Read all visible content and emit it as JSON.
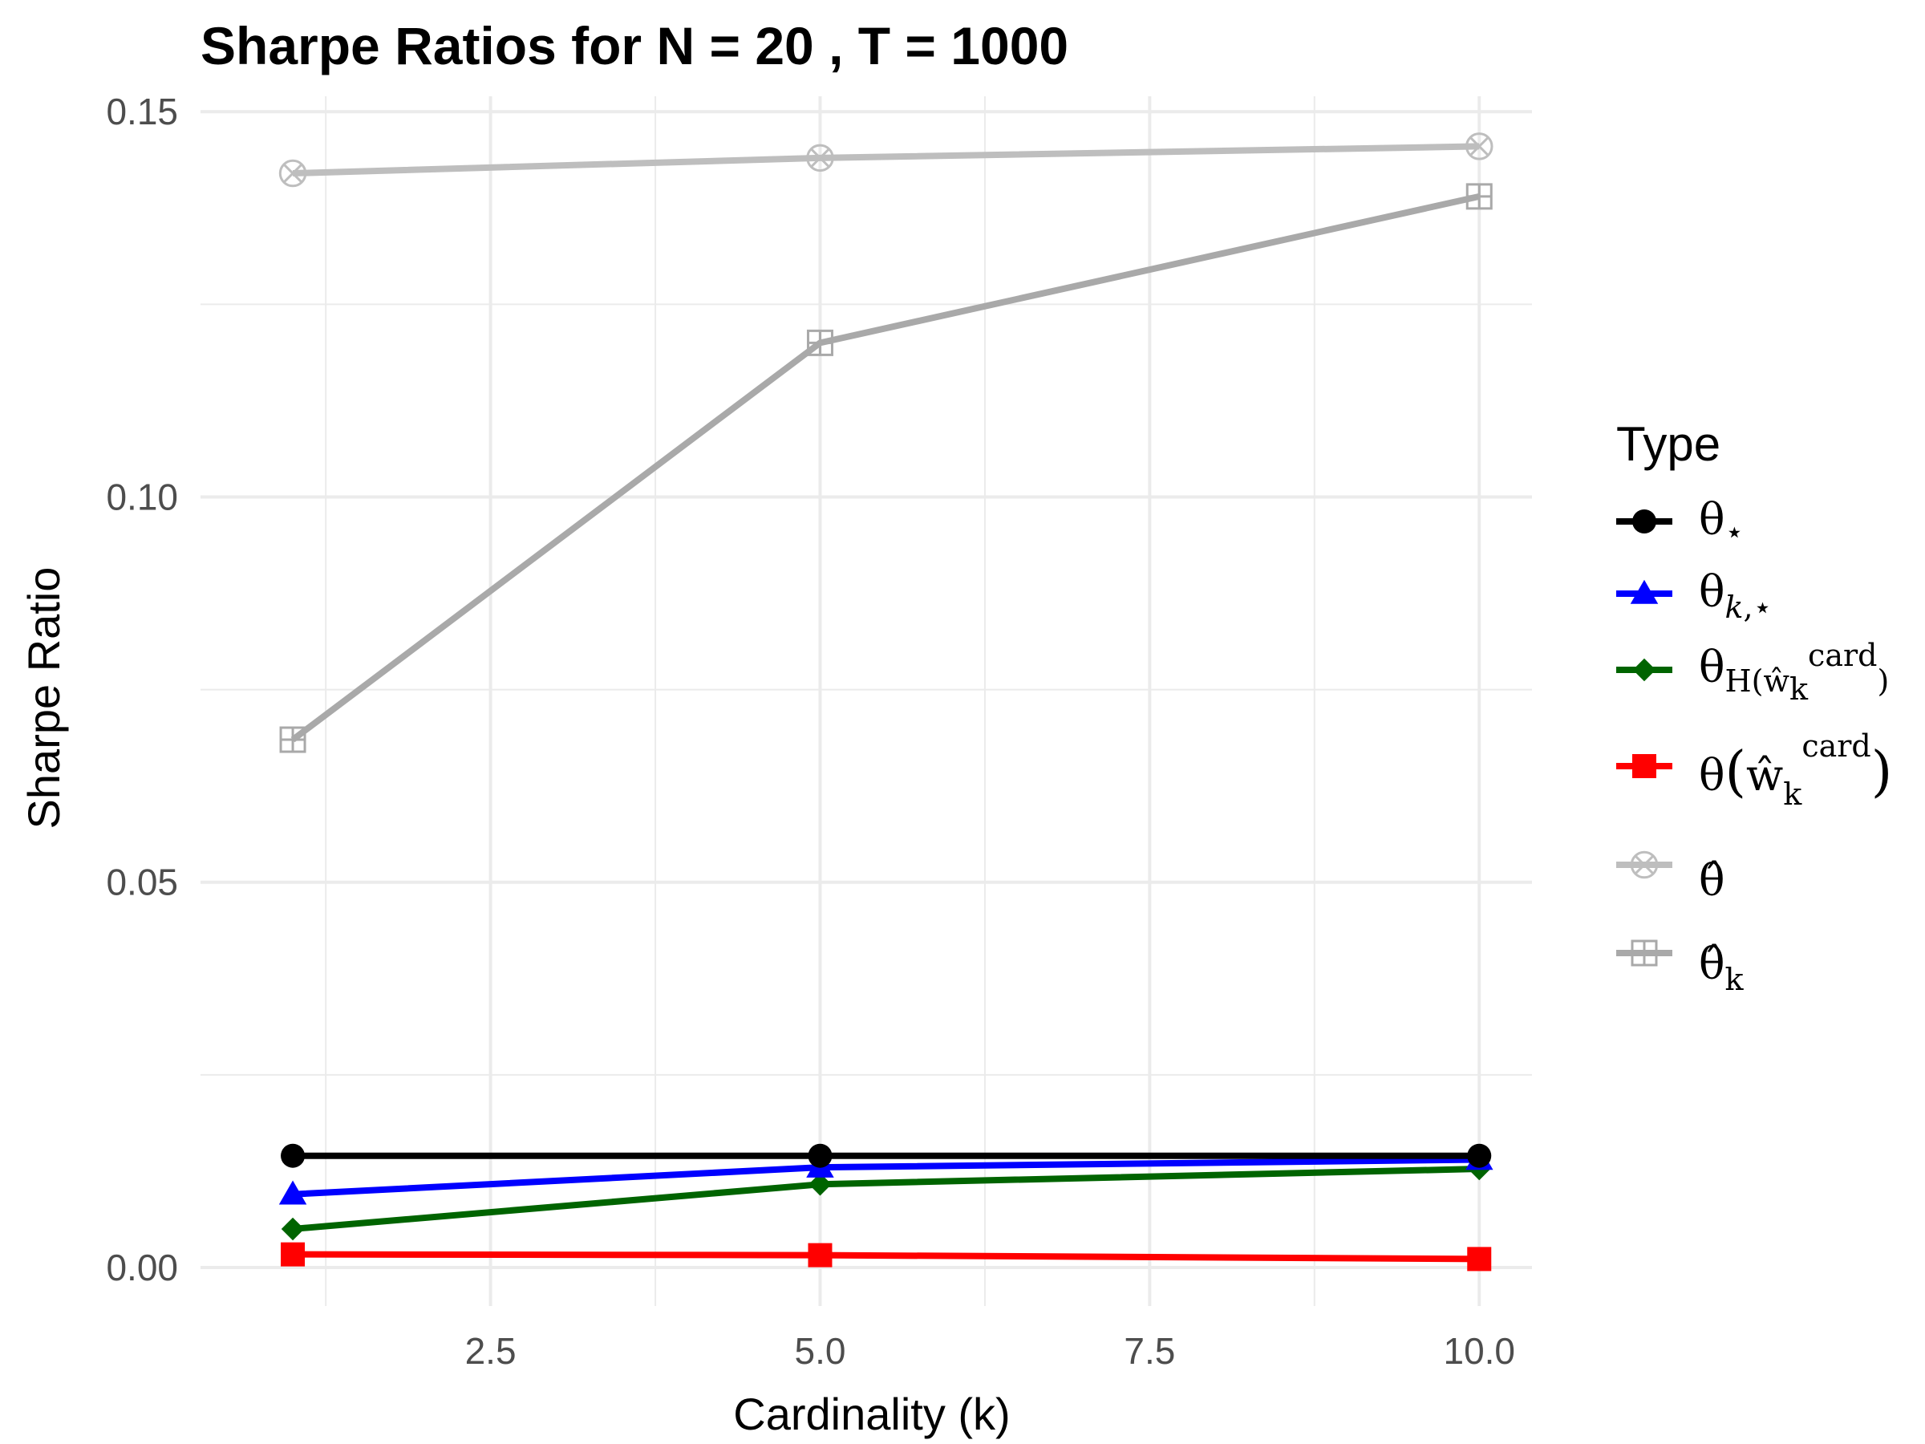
{
  "chart_data": {
    "type": "line",
    "title": "Sharpe Ratios for N = 20 , T = 1000",
    "xlabel": "Cardinality (k)",
    "ylabel": "Sharpe Ratio",
    "x": [
      1,
      5,
      10
    ],
    "xlim": [
      0.3,
      10.4
    ],
    "ylim": [
      -0.005,
      0.152
    ],
    "x_ticks": [
      2.5,
      5.0,
      7.5,
      10.0
    ],
    "x_tick_labels": [
      "2.5",
      "5.0",
      "7.5",
      "10.0"
    ],
    "y_ticks": [
      0.0,
      0.05,
      0.1,
      0.15
    ],
    "y_tick_labels": [
      "0.00",
      "0.05",
      "0.10",
      "0.15"
    ],
    "grid": true,
    "legend_title": "Type",
    "legend_position": "right",
    "series": [
      {
        "name": "θ⋆",
        "color": "#000000",
        "marker": "circle",
        "values": [
          0.0145,
          0.0145,
          0.0145
        ]
      },
      {
        "name": "θk,⋆",
        "color": "#0000ff",
        "marker": "triangle",
        "values": [
          0.0095,
          0.013,
          0.014
        ]
      },
      {
        "name": "θH(ŵk card)",
        "color": "#006400",
        "marker": "diamond",
        "values": [
          0.005,
          0.0108,
          0.0128
        ]
      },
      {
        "name": "θ(ŵk card)",
        "color": "#ff0000",
        "marker": "square",
        "values": [
          0.0017,
          0.0016,
          0.0011
        ]
      },
      {
        "name": "θ̂",
        "color": "#bebebe",
        "marker": "circle-cross",
        "values": [
          0.142,
          0.144,
          0.1455
        ]
      },
      {
        "name": "θ̂k",
        "color": "#a9a9a9",
        "marker": "square-plus",
        "values": [
          0.0685,
          0.12,
          0.139
        ]
      }
    ]
  }
}
